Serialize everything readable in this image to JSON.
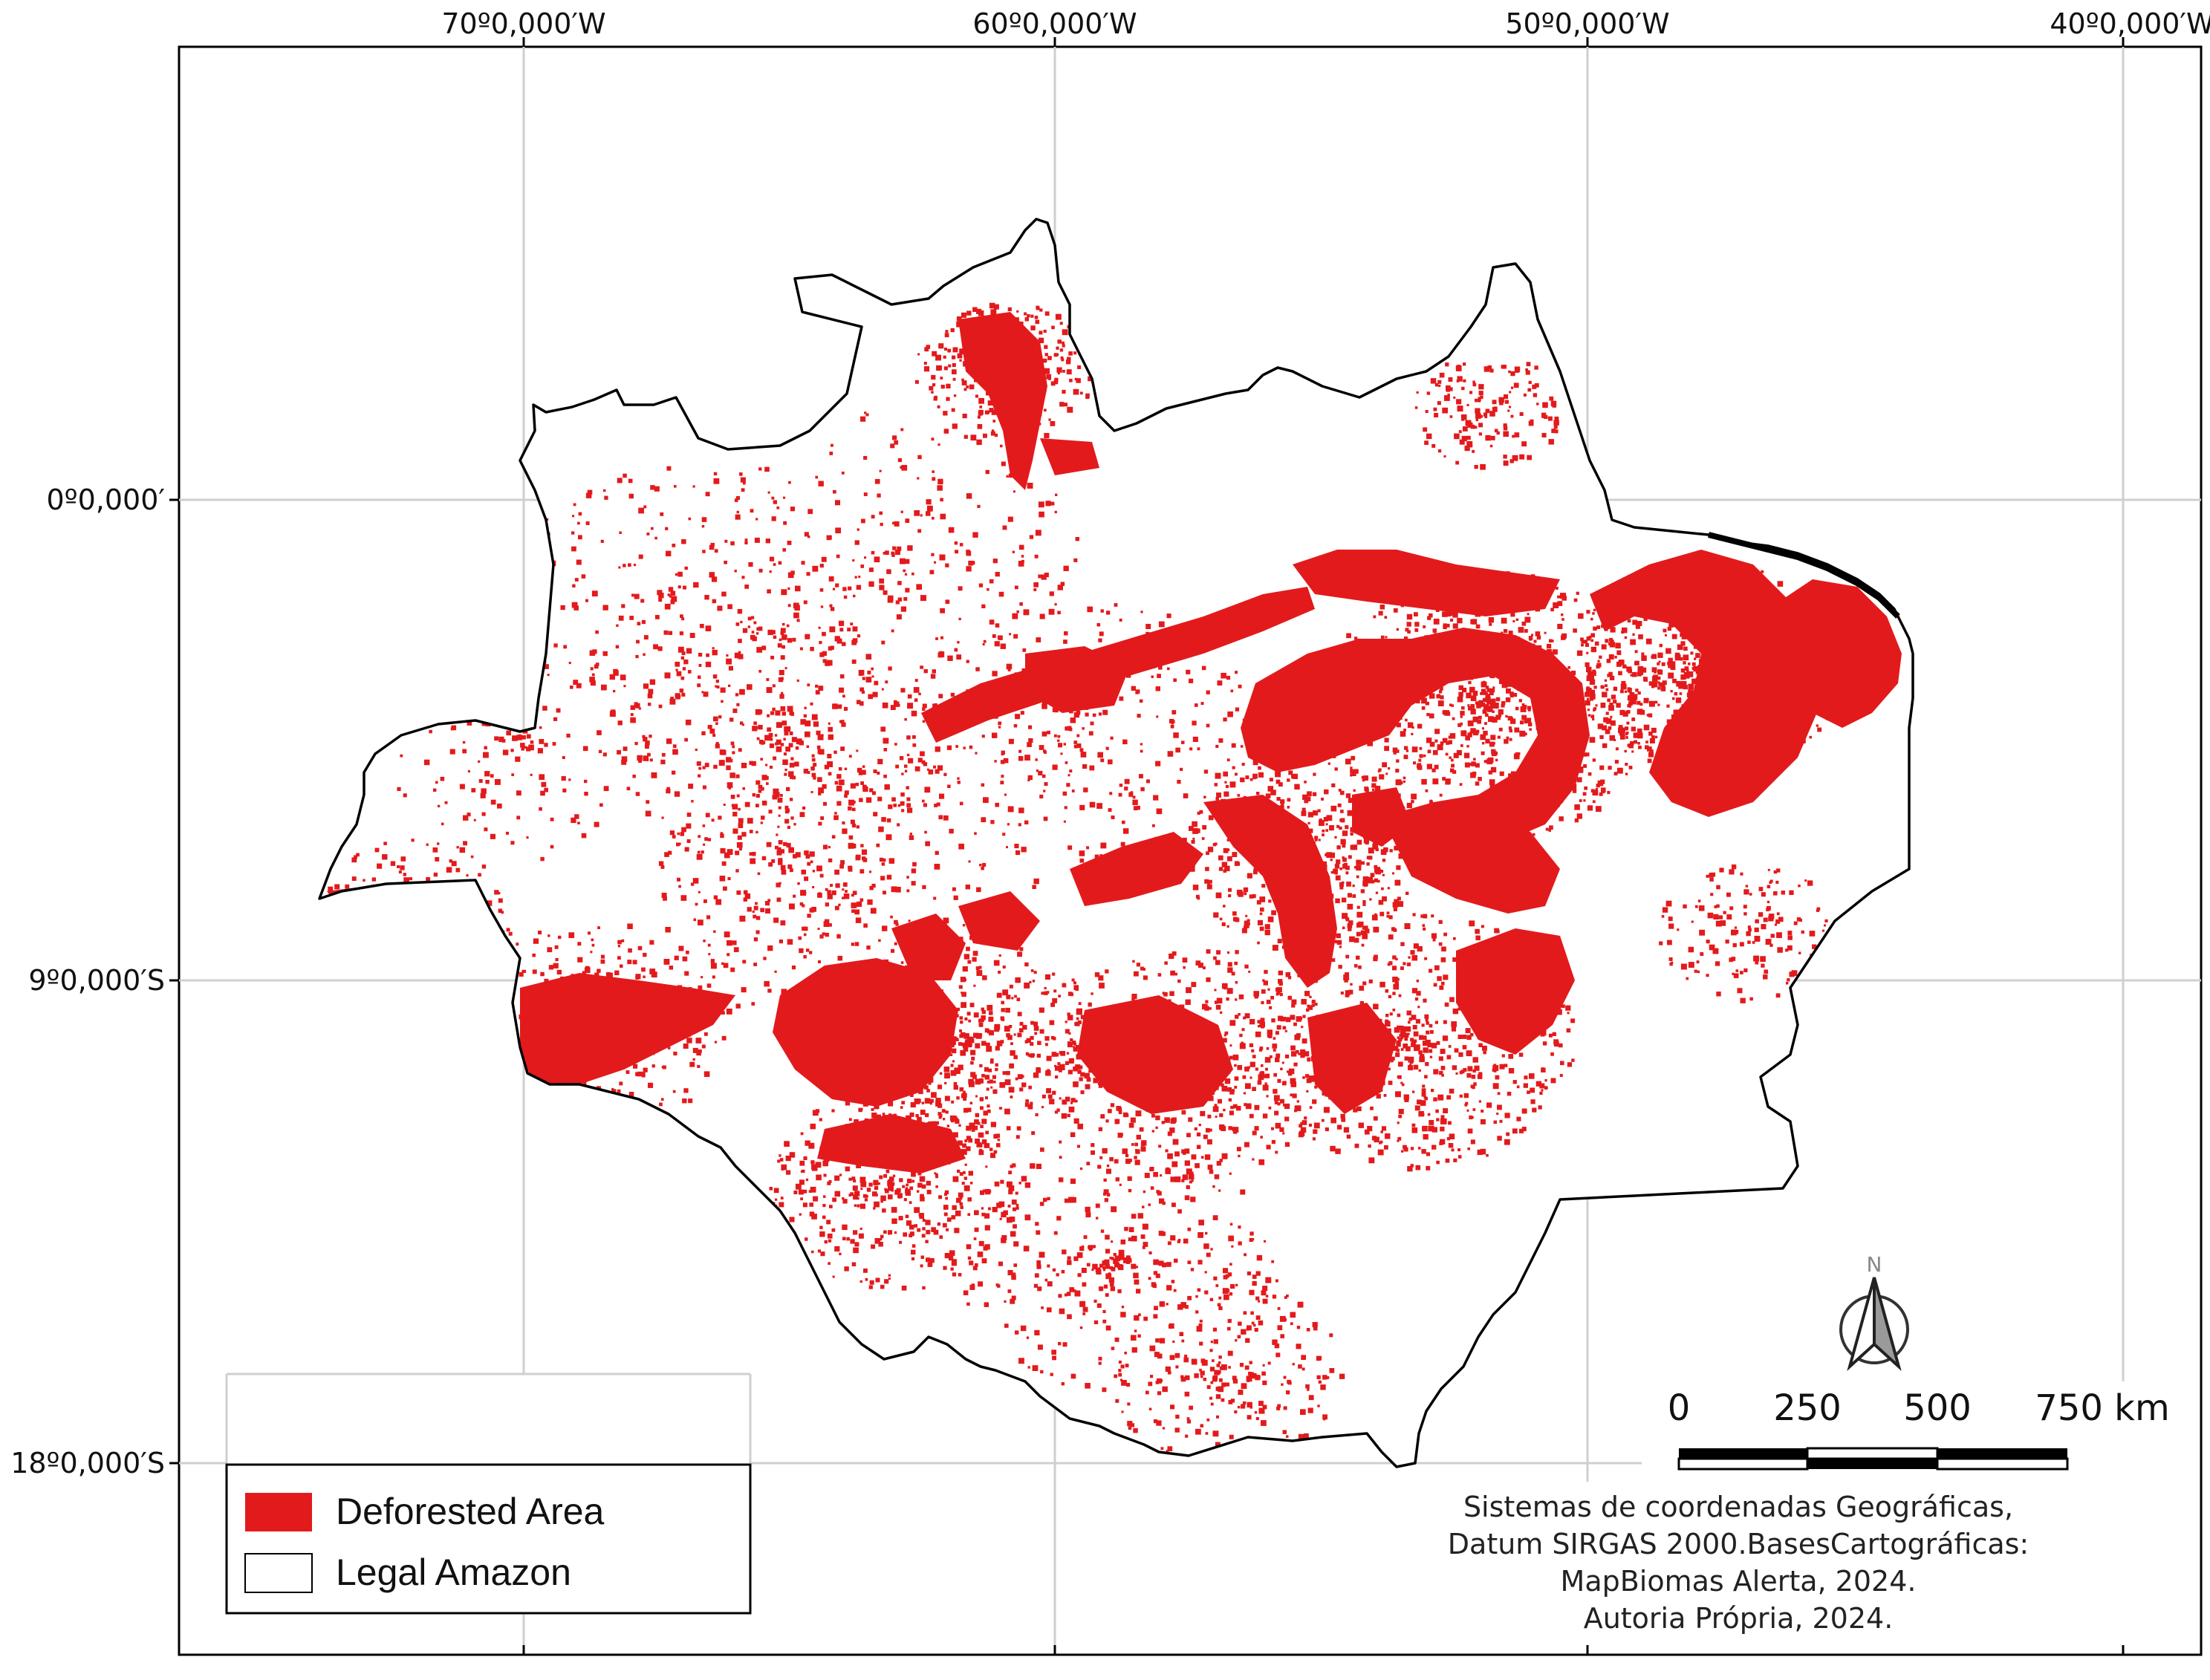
{
  "map": {
    "grid": {
      "longitude_labels": [
        "70º0,000′W",
        "60º0,000′W",
        "50º0,000′W",
        "40º0,000′W"
      ],
      "latitude_labels": [
        "0º0,000′",
        "9º0,000′S",
        "18º0,000′S"
      ]
    },
    "legend": {
      "items": [
        {
          "label": "Deforested Area",
          "swatch_color": "#e31a1c"
        },
        {
          "label": "Legal Amazon",
          "swatch_color": "#ffffff"
        }
      ]
    },
    "north_arrow": {
      "letter": "N"
    },
    "scale_bar": {
      "labels": [
        "0",
        "250",
        "500",
        "750 km"
      ]
    },
    "credits": [
      "Sistemas de coordenadas Geográficas,",
      "Datum SIRGAS 2000.BasesCartográficas:",
      "MapBiomas Alerta, 2024.",
      "Autoria Própria, 2024."
    ],
    "colors": {
      "deforested": "#e31a1c",
      "boundary": "#000000",
      "grid": "#cfcfcf",
      "frame": "#000000"
    }
  }
}
